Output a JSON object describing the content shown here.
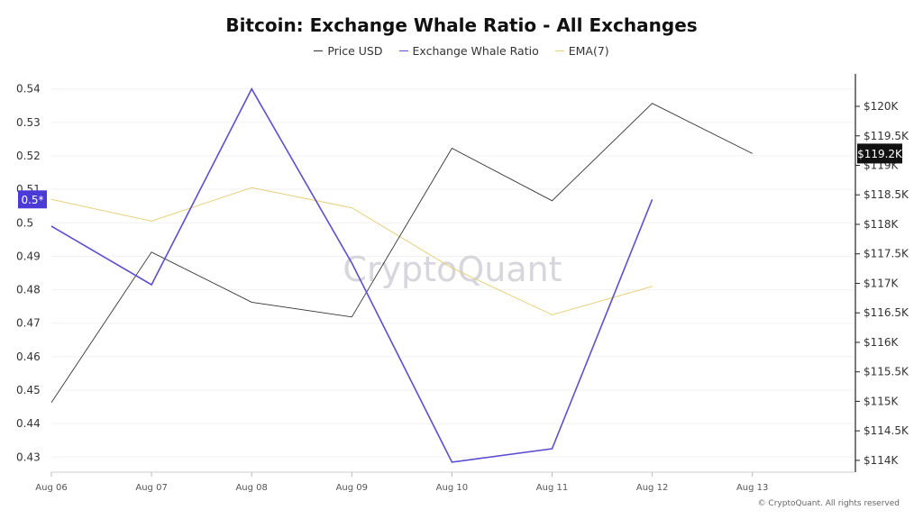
{
  "chart_data": {
    "type": "line",
    "title": "Bitcoin: Exchange Whale Ratio - All Exchanges",
    "categories": [
      "Aug 06",
      "Aug 07",
      "Aug 08",
      "Aug 09",
      "Aug 10",
      "Aug 11",
      "Aug 12",
      "Aug 13"
    ],
    "series": [
      {
        "name": "Price USD",
        "axis": "right",
        "color": "#333333",
        "values": [
          114980,
          117530,
          116680,
          116430,
          119290,
          118400,
          120050,
          119200
        ]
      },
      {
        "name": "Exchange Whale Ratio",
        "axis": "left",
        "color": "#5b4fd1",
        "values": [
          0.499,
          0.4815,
          0.54,
          0.488,
          0.4285,
          0.4325,
          0.507,
          null
        ]
      },
      {
        "name": "EMA(7)",
        "axis": "left",
        "color": "#e8cf7c",
        "values": [
          0.507,
          0.5005,
          0.5105,
          0.5045,
          0.4865,
          0.4725,
          0.481,
          null
        ]
      }
    ],
    "left_axis": {
      "ticks": [
        0.43,
        0.44,
        0.45,
        0.46,
        0.47,
        0.48,
        0.49,
        0.5,
        0.51,
        0.52,
        0.53,
        0.54
      ],
      "labels": [
        "0.43",
        "0.44",
        "0.45",
        "0.46",
        "0.47",
        "0.48",
        "0.49",
        "0.5",
        "0.51",
        "0.52",
        "0.53",
        "0.54"
      ],
      "ylim": [
        0.4255,
        0.5445
      ]
    },
    "right_axis": {
      "ticks": [
        114000,
        114500,
        115000,
        115500,
        116000,
        116500,
        117000,
        117500,
        118000,
        118500,
        119000,
        119500,
        120000
      ],
      "labels": [
        "$114K",
        "$114.5K",
        "$115K",
        "$115.5K",
        "$116K",
        "$116.5K",
        "$117K",
        "$117.5K",
        "$118K",
        "$118.5K",
        "$119K",
        "$119.5K",
        "$120K"
      ],
      "ylim": [
        113800,
        120550
      ]
    },
    "left_badge": {
      "label": "0.5*",
      "value": 0.507,
      "color": "#4b3bd6"
    },
    "right_badge": {
      "label": "$119.2K",
      "value": 119200,
      "color": "#111111"
    },
    "grid": true,
    "legend_position": "top-center"
  },
  "watermark": "CryptoQuant",
  "copyright": "© CryptoQuant. All rights reserved"
}
